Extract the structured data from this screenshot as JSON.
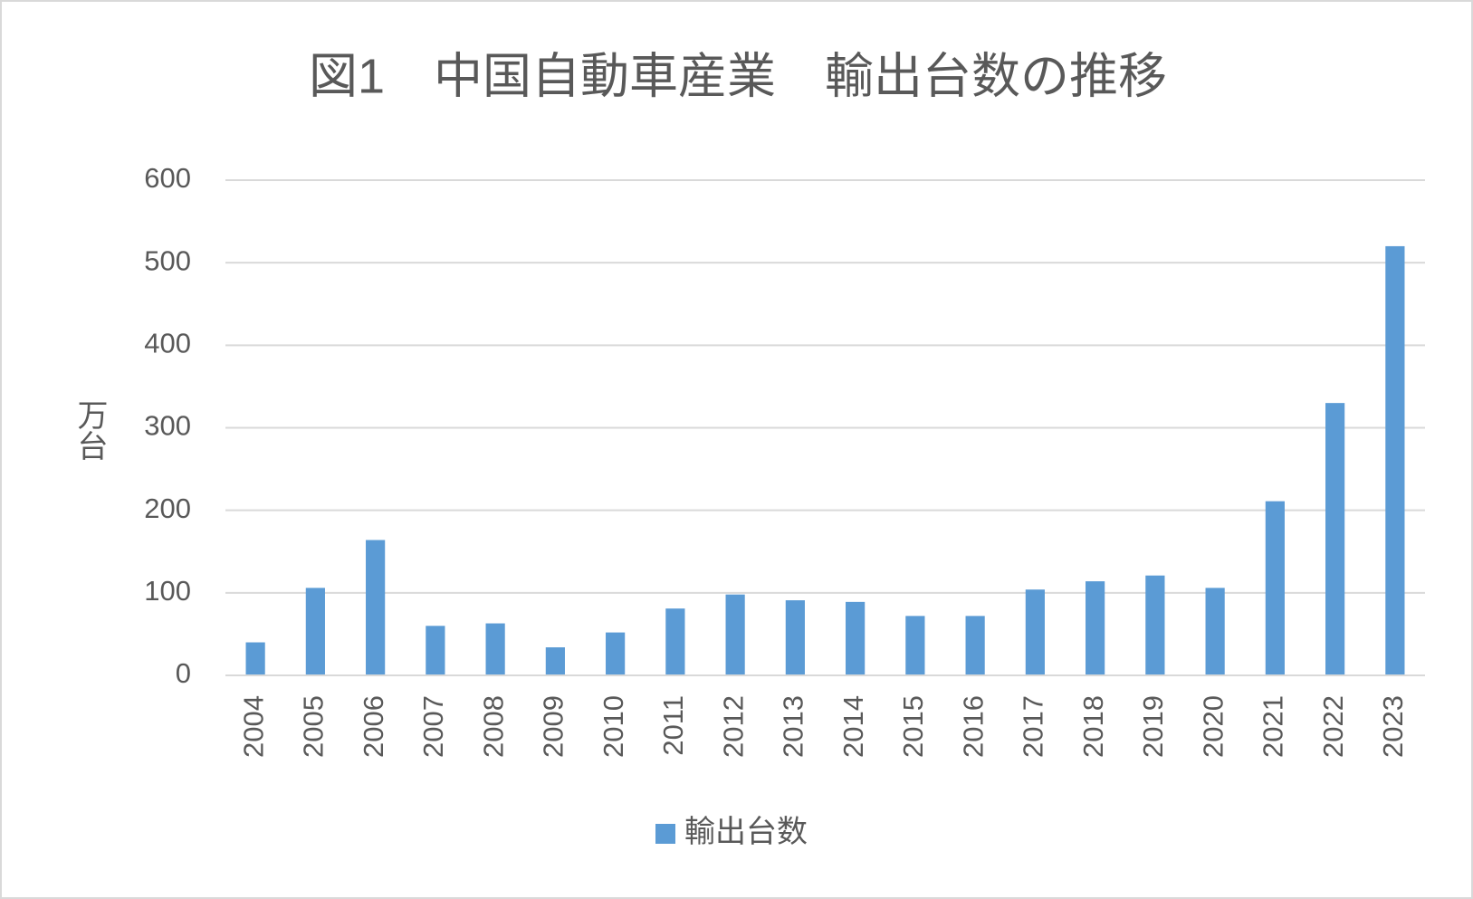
{
  "chart_data": {
    "type": "bar",
    "title": "図1　中国自動車産業　輸出台数の推移",
    "y_label": "万台",
    "categories": [
      "2004",
      "2005",
      "2006",
      "2007",
      "2008",
      "2009",
      "2010",
      "2011",
      "2012",
      "2013",
      "2014",
      "2015",
      "2016",
      "2017",
      "2018",
      "2019",
      "2020",
      "2021",
      "2022",
      "2023"
    ],
    "series": [
      {
        "name": "輸出台数",
        "color": "#5b9bd5",
        "values": [
          40,
          106,
          164,
          60,
          63,
          34,
          52,
          81,
          98,
          91,
          89,
          72,
          72,
          104,
          114,
          121,
          106,
          211,
          330,
          520
        ]
      }
    ],
    "ylim": [
      0,
      600
    ],
    "yticks": [
      0,
      100,
      200,
      300,
      400,
      500,
      600
    ],
    "grid": true,
    "legend": "bottom"
  }
}
